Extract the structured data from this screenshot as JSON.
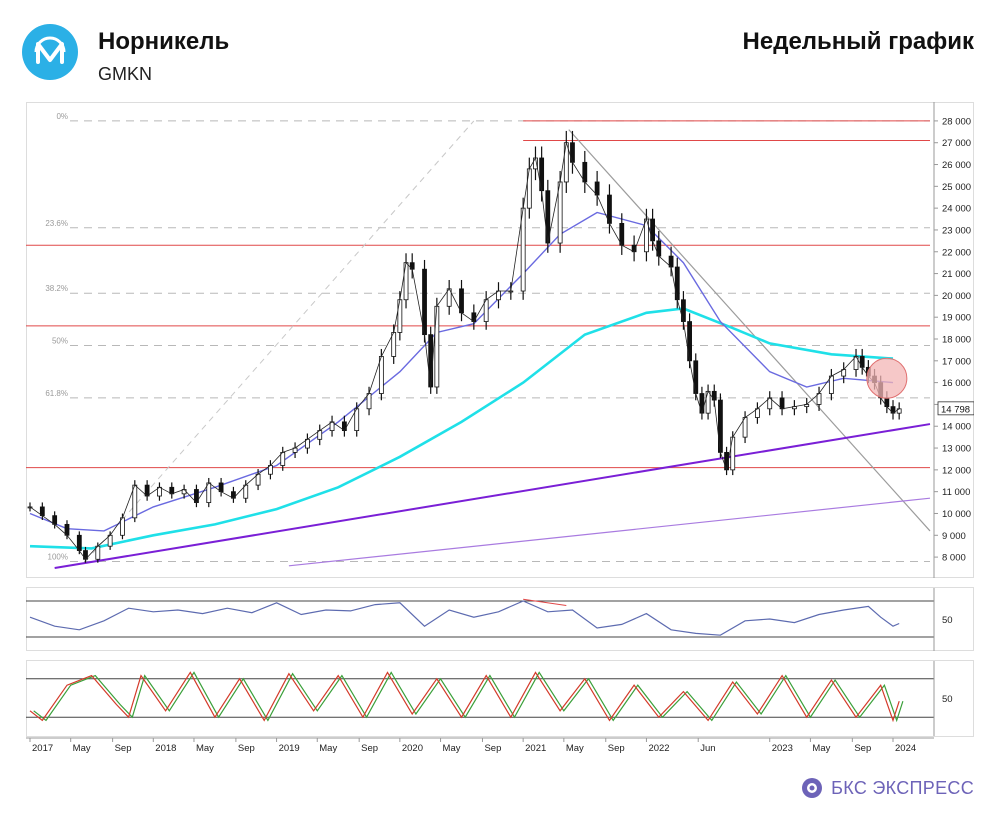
{
  "header": {
    "company": "Норникель",
    "ticker": "GMKN",
    "chart_type": "Недельный график"
  },
  "brand": {
    "name": "БКС ЭКСПРЕСС"
  },
  "colors": {
    "brand_accent": "#2bb0e6",
    "ma_long": "#1fe0e8",
    "ma_short": "#6a6ae0",
    "trend_support": "#7a1fd6",
    "trend_lower": "#a97be0",
    "resistance_lines": "#e04848",
    "fib_lines": "#b8b8b8",
    "rsi_line": "#5d6bb0",
    "stoch_k": "#d43a2a",
    "stoch_d": "#3aa03a"
  },
  "chart_data": {
    "type": "line",
    "price_axis": {
      "ticks": [
        "28 000",
        "27 000",
        "26 000",
        "25 000",
        "24 000",
        "23 000",
        "22 000",
        "21 000",
        "20 000",
        "19 000",
        "18 000",
        "17 000",
        "16 000",
        "15 000",
        "14 000",
        "13 000",
        "12 000",
        "11 000",
        "10 000",
        "9 000",
        "8 000"
      ],
      "ylim": [
        7500,
        28500
      ],
      "current_price_label": "14 798",
      "current_price": 14798
    },
    "fibonacci": [
      {
        "label": "0%",
        "value": 28000
      },
      {
        "label": "23.6%",
        "value": 23100
      },
      {
        "label": "38.2%",
        "value": 20100
      },
      {
        "label": "50%",
        "value": 17700
      },
      {
        "label": "61.8%",
        "value": 15300
      },
      {
        "label": "100%",
        "value": 7800
      }
    ],
    "horizontal_levels": [
      28000,
      27100,
      22300,
      18600,
      12100
    ],
    "time_axis": {
      "labels": [
        "2017",
        "May",
        "Sep",
        "2018",
        "May",
        "Sep",
        "2019",
        "May",
        "Sep",
        "2020",
        "May",
        "Sep",
        "2021",
        "May",
        "Sep",
        "2022",
        "Jun",
        "2023",
        "May",
        "Sep",
        "2024"
      ],
      "positions": [
        0,
        0.33,
        0.67,
        1,
        1.33,
        1.67,
        2,
        2.33,
        2.67,
        3,
        3.33,
        3.67,
        4,
        4.33,
        4.67,
        5,
        5.42,
        6,
        6.33,
        6.67,
        7
      ]
    },
    "price_weekly_close": [
      [
        0,
        10300
      ],
      [
        0.1,
        9900
      ],
      [
        0.2,
        9500
      ],
      [
        0.3,
        9000
      ],
      [
        0.4,
        8300
      ],
      [
        0.45,
        7900
      ],
      [
        0.55,
        8500
      ],
      [
        0.65,
        9000
      ],
      [
        0.75,
        9800
      ],
      [
        0.85,
        11300
      ],
      [
        0.95,
        10800
      ],
      [
        1.05,
        11200
      ],
      [
        1.15,
        10900
      ],
      [
        1.25,
        11100
      ],
      [
        1.35,
        10500
      ],
      [
        1.45,
        11400
      ],
      [
        1.55,
        11000
      ],
      [
        1.65,
        10700
      ],
      [
        1.75,
        11300
      ],
      [
        1.85,
        11800
      ],
      [
        1.95,
        12200
      ],
      [
        2.05,
        12800
      ],
      [
        2.15,
        13000
      ],
      [
        2.25,
        13400
      ],
      [
        2.35,
        13800
      ],
      [
        2.45,
        14200
      ],
      [
        2.55,
        13800
      ],
      [
        2.65,
        14800
      ],
      [
        2.75,
        15500
      ],
      [
        2.85,
        17200
      ],
      [
        2.95,
        18300
      ],
      [
        3.0,
        19800
      ],
      [
        3.05,
        21500
      ],
      [
        3.1,
        21200
      ],
      [
        3.2,
        18200
      ],
      [
        3.25,
        15800
      ],
      [
        3.3,
        19500
      ],
      [
        3.4,
        20300
      ],
      [
        3.5,
        19200
      ],
      [
        3.6,
        18800
      ],
      [
        3.7,
        19800
      ],
      [
        3.8,
        20200
      ],
      [
        3.9,
        20200
      ],
      [
        4.0,
        24000
      ],
      [
        4.05,
        25800
      ],
      [
        4.1,
        26300
      ],
      [
        4.15,
        24800
      ],
      [
        4.2,
        22400
      ],
      [
        4.3,
        25200
      ],
      [
        4.35,
        27000
      ],
      [
        4.4,
        26100
      ],
      [
        4.5,
        25200
      ],
      [
        4.6,
        24600
      ],
      [
        4.7,
        23300
      ],
      [
        4.8,
        22300
      ],
      [
        4.9,
        22000
      ],
      [
        5.0,
        23500
      ],
      [
        5.05,
        22500
      ],
      [
        5.1,
        21800
      ],
      [
        5.2,
        21300
      ],
      [
        5.25,
        19800
      ],
      [
        5.3,
        18800
      ],
      [
        5.35,
        17000
      ],
      [
        5.4,
        15500
      ],
      [
        5.45,
        14600
      ],
      [
        5.5,
        15600
      ],
      [
        5.55,
        15200
      ],
      [
        5.6,
        12800
      ],
      [
        5.65,
        12000
      ],
      [
        5.7,
        13500
      ],
      [
        5.8,
        14400
      ],
      [
        5.9,
        14800
      ],
      [
        6.0,
        15300
      ],
      [
        6.1,
        14800
      ],
      [
        6.2,
        14900
      ],
      [
        6.3,
        15000
      ],
      [
        6.4,
        15500
      ],
      [
        6.5,
        16300
      ],
      [
        6.6,
        16600
      ],
      [
        6.7,
        17200
      ],
      [
        6.75,
        16700
      ],
      [
        6.8,
        16300
      ],
      [
        6.85,
        16000
      ],
      [
        6.9,
        15300
      ],
      [
        6.95,
        14900
      ],
      [
        7.0,
        14600
      ],
      [
        7.05,
        14798
      ]
    ],
    "ma_long_series": [
      [
        0,
        8500
      ],
      [
        0.5,
        8400
      ],
      [
        1.0,
        9000
      ],
      [
        1.5,
        9500
      ],
      [
        2.0,
        10200
      ],
      [
        2.5,
        11200
      ],
      [
        3.0,
        12600
      ],
      [
        3.5,
        14200
      ],
      [
        4.0,
        16000
      ],
      [
        4.5,
        18200
      ],
      [
        5.0,
        19200
      ],
      [
        5.3,
        19400
      ],
      [
        5.7,
        18500
      ],
      [
        6.0,
        17800
      ],
      [
        6.5,
        17300
      ],
      [
        7.0,
        17100
      ]
    ],
    "ma_short_series": [
      [
        0,
        10000
      ],
      [
        0.3,
        9300
      ],
      [
        0.6,
        9200
      ],
      [
        1.0,
        10300
      ],
      [
        1.5,
        11200
      ],
      [
        2.0,
        12200
      ],
      [
        2.5,
        14200
      ],
      [
        3.0,
        16500
      ],
      [
        3.3,
        18300
      ],
      [
        3.6,
        18700
      ],
      [
        4.0,
        21000
      ],
      [
        4.3,
        22800
      ],
      [
        4.6,
        23800
      ],
      [
        5.0,
        23200
      ],
      [
        5.3,
        21500
      ],
      [
        5.6,
        18800
      ],
      [
        6.0,
        16500
      ],
      [
        6.3,
        15800
      ],
      [
        6.6,
        16200
      ],
      [
        7.0,
        16000
      ]
    ],
    "rsi": {
      "level_label": "50",
      "series": [
        [
          0,
          52
        ],
        [
          0.2,
          42
        ],
        [
          0.4,
          38
        ],
        [
          0.6,
          48
        ],
        [
          0.8,
          62
        ],
        [
          1.0,
          58
        ],
        [
          1.2,
          60
        ],
        [
          1.4,
          56
        ],
        [
          1.6,
          62
        ],
        [
          1.8,
          57
        ],
        [
          2.0,
          68
        ],
        [
          2.2,
          55
        ],
        [
          2.4,
          60
        ],
        [
          2.6,
          59
        ],
        [
          2.8,
          66
        ],
        [
          3.0,
          68
        ],
        [
          3.2,
          42
        ],
        [
          3.4,
          60
        ],
        [
          3.6,
          52
        ],
        [
          3.8,
          58
        ],
        [
          4.0,
          70
        ],
        [
          4.2,
          58
        ],
        [
          4.4,
          60
        ],
        [
          4.6,
          40
        ],
        [
          4.8,
          44
        ],
        [
          5.0,
          56
        ],
        [
          5.2,
          38
        ],
        [
          5.4,
          34
        ],
        [
          5.6,
          32
        ],
        [
          5.8,
          48
        ],
        [
          6.0,
          50
        ],
        [
          6.2,
          46
        ],
        [
          6.4,
          55
        ],
        [
          6.6,
          60
        ],
        [
          6.8,
          64
        ],
        [
          6.9,
          52
        ],
        [
          7.0,
          42
        ],
        [
          7.05,
          45
        ]
      ]
    },
    "stochastic": {
      "level_label": "50",
      "k_series": [
        [
          0,
          30
        ],
        [
          0.1,
          15
        ],
        [
          0.3,
          70
        ],
        [
          0.5,
          85
        ],
        [
          0.7,
          40
        ],
        [
          0.8,
          20
        ],
        [
          0.9,
          85
        ],
        [
          1.1,
          30
        ],
        [
          1.3,
          90
        ],
        [
          1.5,
          20
        ],
        [
          1.7,
          80
        ],
        [
          1.9,
          15
        ],
        [
          2.1,
          88
        ],
        [
          2.3,
          30
        ],
        [
          2.5,
          85
        ],
        [
          2.7,
          20
        ],
        [
          2.9,
          90
        ],
        [
          3.1,
          25
        ],
        [
          3.3,
          80
        ],
        [
          3.5,
          20
        ],
        [
          3.7,
          85
        ],
        [
          3.9,
          20
        ],
        [
          4.1,
          90
        ],
        [
          4.3,
          30
        ],
        [
          4.5,
          80
        ],
        [
          4.7,
          15
        ],
        [
          4.9,
          70
        ],
        [
          5.1,
          20
        ],
        [
          5.3,
          60
        ],
        [
          5.5,
          15
        ],
        [
          5.7,
          75
        ],
        [
          5.9,
          25
        ],
        [
          6.1,
          85
        ],
        [
          6.3,
          20
        ],
        [
          6.5,
          78
        ],
        [
          6.7,
          20
        ],
        [
          6.9,
          70
        ],
        [
          7.0,
          15
        ],
        [
          7.05,
          45
        ]
      ]
    }
  }
}
